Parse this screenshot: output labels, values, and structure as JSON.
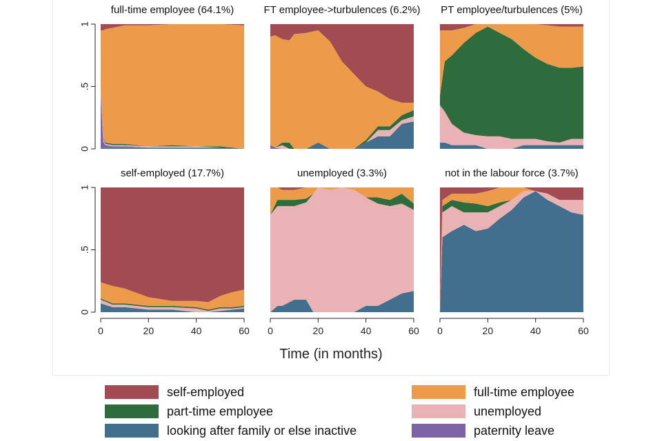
{
  "chart_data": {
    "type": "area",
    "stacked": true,
    "xlabel": "Time (in months)",
    "ylabel": "",
    "xlim": [
      0,
      60
    ],
    "ylim": [
      0,
      1
    ],
    "x_ticks": [
      "0",
      "20",
      "40",
      "60"
    ],
    "y_ticks": [
      "0",
      ".5",
      "1"
    ],
    "series_order": [
      "looking after family or else inactive",
      "paternity leave",
      "unemployed",
      "part-time employee",
      "full-time employee",
      "self-employed"
    ],
    "colors": {
      "self-employed": "#a24b52",
      "full-time employee": "#ec9b4b",
      "part-time employee": "#2e6b3d",
      "unemployed": "#e9b2b5",
      "looking after family or else inactive": "#436f8e",
      "paternity leave": "#7b63a6"
    },
    "legend": [
      {
        "label": "self-employed",
        "series": "self-employed"
      },
      {
        "label": "full-time employee",
        "series": "full-time employee"
      },
      {
        "label": "part-time employee",
        "series": "part-time employee"
      },
      {
        "label": "unemployed",
        "series": "unemployed"
      },
      {
        "label": "looking after family or else inactive",
        "series": "looking after family or else inactive"
      },
      {
        "label": "paternity leave",
        "series": "paternity leave"
      }
    ],
    "panels": [
      {
        "title": "full-time employee (64.1%)",
        "x": [
          0,
          1,
          2,
          5,
          10,
          20,
          30,
          40,
          50,
          60
        ],
        "series": [
          {
            "name": "looking after family or else inactive",
            "values": [
              0.0,
              0.01,
              0.01,
              0.01,
              0.01,
              0.01,
              0.01,
              0.01,
              0.01,
              0.0
            ]
          },
          {
            "name": "paternity leave",
            "values": [
              0.45,
              0.05,
              0.02,
              0.01,
              0.01,
              0.0,
              0.0,
              0.0,
              0.0,
              0.0
            ]
          },
          {
            "name": "unemployed",
            "values": [
              0.02,
              0.02,
              0.01,
              0.01,
              0.01,
              0.01,
              0.01,
              0.01,
              0.0,
              0.0
            ]
          },
          {
            "name": "part-time employee",
            "values": [
              0.01,
              0.01,
              0.01,
              0.01,
              0.01,
              0.0,
              0.01,
              0.0,
              0.01,
              0.0
            ]
          },
          {
            "name": "full-time employee",
            "values": [
              0.47,
              0.86,
              0.91,
              0.93,
              0.95,
              0.97,
              0.97,
              0.98,
              0.98,
              0.99
            ]
          },
          {
            "name": "self-employed",
            "values": [
              0.05,
              0.05,
              0.04,
              0.03,
              0.01,
              0.01,
              0.0,
              0.0,
              0.0,
              0.01
            ]
          }
        ]
      },
      {
        "title": "FT employee->turbulences (6.2%)",
        "x": [
          0,
          2,
          5,
          8,
          10,
          15,
          20,
          25,
          30,
          35,
          40,
          45,
          50,
          55,
          60
        ],
        "series": [
          {
            "name": "looking after family or else inactive",
            "values": [
              0.0,
              0.0,
              0.0,
              0.0,
              0.0,
              0.0,
              0.05,
              0.0,
              0.0,
              0.0,
              0.05,
              0.1,
              0.1,
              0.2,
              0.22
            ]
          },
          {
            "name": "paternity leave",
            "values": [
              0.03,
              0.01,
              0.0,
              0.0,
              0.0,
              0.0,
              0.0,
              0.0,
              0.0,
              0.0,
              0.0,
              0.0,
              0.0,
              0.0,
              0.0
            ]
          },
          {
            "name": "unemployed",
            "values": [
              0.0,
              0.0,
              0.03,
              0.0,
              0.0,
              0.0,
              0.0,
              0.0,
              0.0,
              0.0,
              0.0,
              0.05,
              0.05,
              0.03,
              0.04
            ]
          },
          {
            "name": "part-time employee",
            "values": [
              0.0,
              0.0,
              0.02,
              0.05,
              0.0,
              0.0,
              0.0,
              0.0,
              0.0,
              0.0,
              0.02,
              0.03,
              0.03,
              0.04,
              0.05
            ]
          },
          {
            "name": "full-time employee",
            "values": [
              0.87,
              0.9,
              0.83,
              0.82,
              0.92,
              0.93,
              0.9,
              0.86,
              0.7,
              0.6,
              0.43,
              0.28,
              0.22,
              0.1,
              0.06
            ]
          },
          {
            "name": "self-employed",
            "values": [
              0.1,
              0.09,
              0.12,
              0.13,
              0.08,
              0.07,
              0.05,
              0.14,
              0.3,
              0.4,
              0.5,
              0.54,
              0.6,
              0.63,
              0.63
            ]
          }
        ]
      },
      {
        "title": "PT employee/turbulences (5%)",
        "x": [
          0,
          2,
          5,
          10,
          15,
          20,
          25,
          30,
          35,
          40,
          45,
          50,
          55,
          60
        ],
        "series": [
          {
            "name": "looking after family or else inactive",
            "values": [
              0.05,
              0.05,
              0.03,
              0.03,
              0.03,
              0.0,
              0.0,
              0.0,
              0.03,
              0.03,
              0.03,
              0.03,
              0.03,
              0.03
            ]
          },
          {
            "name": "paternity leave",
            "values": [
              0.0,
              0.0,
              0.0,
              0.0,
              0.0,
              0.0,
              0.0,
              0.0,
              0.0,
              0.0,
              0.0,
              0.0,
              0.0,
              0.0
            ]
          },
          {
            "name": "unemployed",
            "values": [
              0.3,
              0.25,
              0.17,
              0.1,
              0.08,
              0.1,
              0.1,
              0.08,
              0.05,
              0.05,
              0.03,
              0.02,
              0.05,
              0.05
            ]
          },
          {
            "name": "part-time employee",
            "values": [
              0.08,
              0.4,
              0.55,
              0.72,
              0.82,
              0.88,
              0.83,
              0.8,
              0.72,
              0.65,
              0.62,
              0.6,
              0.57,
              0.58
            ]
          },
          {
            "name": "full-time employee",
            "values": [
              0.52,
              0.25,
              0.2,
              0.12,
              0.07,
              0.02,
              0.07,
              0.12,
              0.2,
              0.27,
              0.31,
              0.33,
              0.33,
              0.32
            ]
          },
          {
            "name": "self-employed",
            "values": [
              0.05,
              0.05,
              0.05,
              0.03,
              0.0,
              0.0,
              0.0,
              0.0,
              0.0,
              0.0,
              0.01,
              0.02,
              0.02,
              0.02
            ]
          }
        ]
      },
      {
        "title": "self-employed (17.7%)",
        "x": [
          0,
          5,
          10,
          20,
          30,
          40,
          45,
          50,
          55,
          60
        ],
        "series": [
          {
            "name": "looking after family or else inactive",
            "values": [
              0.07,
              0.04,
              0.04,
              0.02,
              0.02,
              0.0,
              0.0,
              0.01,
              0.02,
              0.03
            ]
          },
          {
            "name": "paternity leave",
            "values": [
              0.0,
              0.0,
              0.0,
              0.0,
              0.0,
              0.0,
              0.0,
              0.0,
              0.0,
              0.0
            ]
          },
          {
            "name": "unemployed",
            "values": [
              0.03,
              0.02,
              0.02,
              0.02,
              0.02,
              0.03,
              0.01,
              0.02,
              0.01,
              0.01
            ]
          },
          {
            "name": "part-time employee",
            "values": [
              0.01,
              0.01,
              0.01,
              0.01,
              0.01,
              0.01,
              0.01,
              0.01,
              0.01,
              0.01
            ]
          },
          {
            "name": "full-time employee",
            "values": [
              0.13,
              0.14,
              0.12,
              0.07,
              0.04,
              0.05,
              0.06,
              0.09,
              0.12,
              0.13
            ]
          },
          {
            "name": "self-employed",
            "values": [
              0.76,
              0.79,
              0.81,
              0.88,
              0.91,
              0.91,
              0.92,
              0.87,
              0.84,
              0.82
            ]
          }
        ]
      },
      {
        "title": "unemployed (3.3%)",
        "x": [
          0,
          3,
          5,
          10,
          15,
          18,
          20,
          25,
          30,
          35,
          40,
          45,
          50,
          55,
          60
        ],
        "series": [
          {
            "name": "looking after family or else inactive",
            "values": [
              0.0,
              0.05,
              0.05,
              0.1,
              0.1,
              0.0,
              0.0,
              0.0,
              0.0,
              0.0,
              0.05,
              0.05,
              0.1,
              0.15,
              0.17
            ]
          },
          {
            "name": "paternity leave",
            "values": [
              0.0,
              0.0,
              0.0,
              0.0,
              0.0,
              0.0,
              0.0,
              0.0,
              0.0,
              0.0,
              0.0,
              0.0,
              0.0,
              0.0,
              0.0
            ]
          },
          {
            "name": "unemployed",
            "values": [
              0.78,
              0.8,
              0.8,
              0.75,
              0.78,
              0.95,
              1.0,
              0.98,
              1.0,
              0.98,
              0.87,
              0.82,
              0.75,
              0.72,
              0.65
            ]
          },
          {
            "name": "part-time employee",
            "values": [
              0.0,
              0.05,
              0.05,
              0.05,
              0.03,
              0.0,
              0.0,
              0.0,
              0.0,
              0.0,
              0.0,
              0.05,
              0.05,
              0.08,
              0.05
            ]
          },
          {
            "name": "full-time employee",
            "values": [
              0.22,
              0.1,
              0.08,
              0.08,
              0.09,
              0.05,
              0.0,
              0.02,
              0.0,
              0.02,
              0.08,
              0.08,
              0.1,
              0.05,
              0.13
            ]
          },
          {
            "name": "self-employed",
            "values": [
              0.0,
              0.0,
              0.02,
              0.02,
              0.0,
              0.0,
              0.0,
              0.0,
              0.0,
              0.0,
              0.0,
              0.0,
              0.0,
              0.0,
              0.0
            ]
          }
        ]
      },
      {
        "title": "not in the labour force (3.7%)",
        "x": [
          0,
          1,
          5,
          10,
          15,
          20,
          25,
          30,
          35,
          40,
          45,
          50,
          55,
          60
        ],
        "series": [
          {
            "name": "looking after family or else inactive",
            "values": [
              0.0,
              0.6,
              0.65,
              0.7,
              0.65,
              0.67,
              0.75,
              0.82,
              0.92,
              0.97,
              0.9,
              0.85,
              0.8,
              0.78
            ]
          },
          {
            "name": "paternity leave",
            "values": [
              0.0,
              0.0,
              0.0,
              0.0,
              0.0,
              0.0,
              0.0,
              0.0,
              0.0,
              0.0,
              0.0,
              0.0,
              0.0,
              0.0
            ]
          },
          {
            "name": "unemployed",
            "values": [
              0.0,
              0.2,
              0.2,
              0.1,
              0.15,
              0.13,
              0.1,
              0.08,
              0.05,
              0.0,
              0.05,
              0.05,
              0.1,
              0.12
            ]
          },
          {
            "name": "part-time employee",
            "values": [
              0.0,
              0.05,
              0.05,
              0.08,
              0.07,
              0.05,
              0.03,
              0.0,
              0.0,
              0.0,
              0.0,
              0.0,
              0.0,
              0.0
            ]
          },
          {
            "name": "full-time employee",
            "values": [
              0.0,
              0.05,
              0.05,
              0.07,
              0.08,
              0.12,
              0.12,
              0.1,
              0.03,
              0.0,
              0.0,
              0.0,
              0.0,
              0.0
            ]
          },
          {
            "name": "self-employed",
            "values": [
              1.0,
              0.1,
              0.05,
              0.05,
              0.05,
              0.03,
              0.0,
              0.0,
              0.0,
              0.03,
              0.05,
              0.1,
              0.1,
              0.1
            ]
          }
        ]
      }
    ]
  }
}
